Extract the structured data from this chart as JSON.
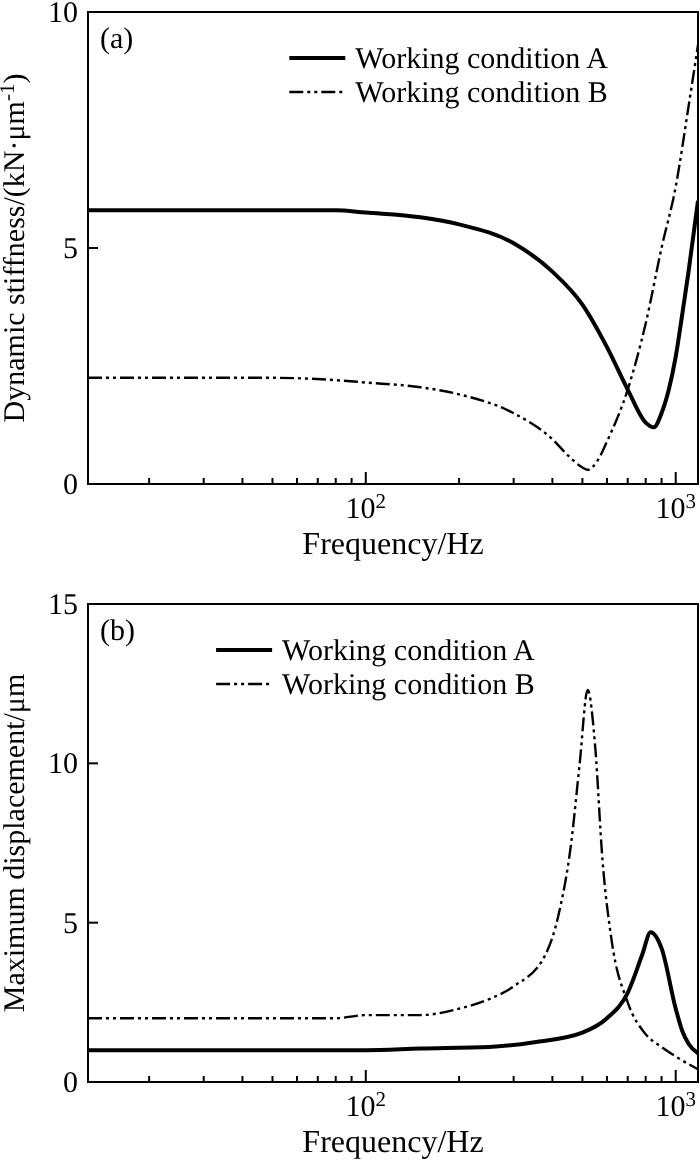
{
  "chart_data": [
    {
      "type": "line",
      "xlabel": "Frequency/Hz",
      "ylabel": "Dynamic stiffness/(kN·μm$^{-1}$)",
      "annotations": [
        "(a)"
      ],
      "log": "x",
      "xlim": [
        12.7,
        1180
      ],
      "ylim": [
        0,
        10
      ],
      "yticks": [
        0,
        5,
        10
      ],
      "xticks": [
        {
          "value": 20,
          "label": null
        },
        {
          "value": 30,
          "label": null
        },
        {
          "value": 40,
          "label": null
        },
        {
          "value": 50,
          "label": null
        },
        {
          "value": 60,
          "label": null
        },
        {
          "value": 70,
          "label": null
        },
        {
          "value": 80,
          "label": null
        },
        {
          "value": 90,
          "label": null
        },
        {
          "value": 100,
          "label": "10$^{2}$"
        },
        {
          "value": 200,
          "label": null
        },
        {
          "value": 300,
          "label": null
        },
        {
          "value": 400,
          "label": null
        },
        {
          "value": 500,
          "label": null
        },
        {
          "value": 600,
          "label": null
        },
        {
          "value": 700,
          "label": null
        },
        {
          "value": 800,
          "label": null
        },
        {
          "value": 900,
          "label": null
        },
        {
          "value": 1000,
          "label": "10$^{3}$"
        }
      ],
      "grid": false,
      "legend": "top right",
      "series": [
        {
          "name": "Working condition A",
          "color": "#000000",
          "line_style": "solid",
          "x": [
            12.7,
            50,
            80,
            100,
            150,
            200,
            300,
            400,
            500,
            600,
            700,
            800,
            850,
            900,
            950,
            1000,
            1050,
            1100,
            1180
          ],
          "values": [
            5.8,
            5.8,
            5.8,
            5.75,
            5.65,
            5.5,
            5.1,
            4.5,
            3.8,
            2.9,
            2.0,
            1.3,
            1.2,
            1.5,
            2.0,
            2.7,
            3.6,
            4.5,
            6.0
          ]
        },
        {
          "name": "Working condition B",
          "color": "#000000",
          "line_style": "dashed",
          "x": [
            12.7,
            50,
            80,
            100,
            150,
            200,
            300,
            400,
            450,
            500,
            520,
            560,
            600,
            700,
            800,
            900,
            1000,
            1100,
            1180
          ],
          "values": [
            2.25,
            2.25,
            2.2,
            2.15,
            2.05,
            1.9,
            1.5,
            0.95,
            0.6,
            0.35,
            0.3,
            0.5,
            0.9,
            2.0,
            3.4,
            5.0,
            6.3,
            8.0,
            9.3
          ]
        }
      ]
    },
    {
      "type": "line",
      "xlabel": "Frequency/Hz",
      "ylabel": "Maximum displacement/μm",
      "annotations": [
        "(b)"
      ],
      "log": "x",
      "xlim": [
        12.7,
        1180
      ],
      "ylim": [
        0,
        15
      ],
      "yticks": [
        0,
        5,
        10,
        15
      ],
      "xticks": [
        {
          "value": 20,
          "label": null
        },
        {
          "value": 30,
          "label": null
        },
        {
          "value": 40,
          "label": null
        },
        {
          "value": 50,
          "label": null
        },
        {
          "value": 60,
          "label": null
        },
        {
          "value": 70,
          "label": null
        },
        {
          "value": 80,
          "label": null
        },
        {
          "value": 90,
          "label": null
        },
        {
          "value": 100,
          "label": "10$^{2}$"
        },
        {
          "value": 200,
          "label": null
        },
        {
          "value": 300,
          "label": null
        },
        {
          "value": 400,
          "label": null
        },
        {
          "value": 500,
          "label": null
        },
        {
          "value": 600,
          "label": null
        },
        {
          "value": 700,
          "label": null
        },
        {
          "value": 800,
          "label": null
        },
        {
          "value": 900,
          "label": null
        },
        {
          "value": 1000,
          "label": "10$^{3}$"
        }
      ],
      "grid": false,
      "legend": "top",
      "series": [
        {
          "name": "Working condition A",
          "color": "#000000",
          "line_style": "solid",
          "x": [
            12.7,
            100,
            150,
            250,
            350,
            500,
            600,
            700,
            780,
            830,
            900,
            1000,
            1050,
            1100,
            1180
          ],
          "values": [
            1.0,
            1.0,
            1.05,
            1.1,
            1.25,
            1.55,
            2.0,
            2.8,
            4.0,
            4.7,
            4.2,
            2.3,
            1.6,
            1.2,
            0.9
          ]
        },
        {
          "name": "Working condition B",
          "color": "#000000",
          "line_style": "dashed",
          "x": [
            12.7,
            80,
            100,
            150,
            200,
            250,
            300,
            380,
            420,
            460,
            490,
            520,
            550,
            580,
            620,
            700,
            800,
            900,
            1000,
            1180
          ],
          "values": [
            2.0,
            2.0,
            2.1,
            2.1,
            2.3,
            2.6,
            3.0,
            4.0,
            5.3,
            7.5,
            10.0,
            12.3,
            10.5,
            7.0,
            4.5,
            2.5,
            1.5,
            1.1,
            0.8,
            0.4
          ]
        }
      ]
    }
  ]
}
